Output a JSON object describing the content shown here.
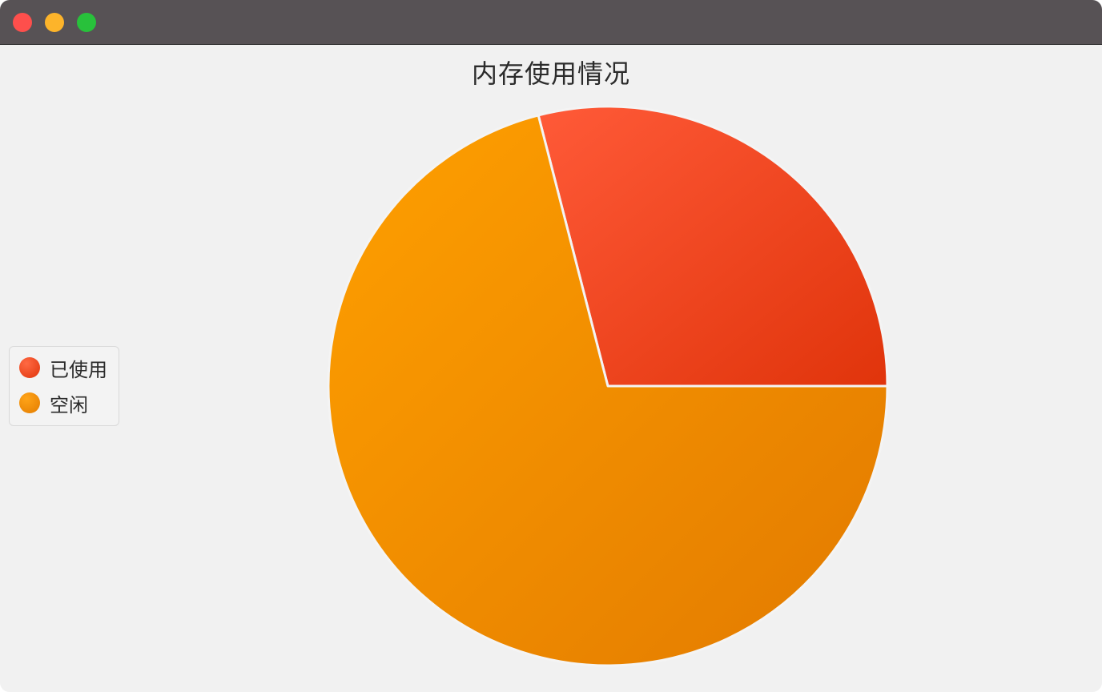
{
  "window": {
    "buttons": [
      "close",
      "minimize",
      "maximize"
    ]
  },
  "colors": {
    "used": "#e8401c",
    "free": "#f39400",
    "used_light": "#ff5a38",
    "used_dark": "#e0340b",
    "free_light": "#ff9f00",
    "free_dark": "#e37c00"
  },
  "chart_data": {
    "type": "pie",
    "title": "内存使用情况",
    "legend_position": "left",
    "slices": [
      {
        "label": "已使用",
        "value": 29
      },
      {
        "label": "空闲",
        "value": 71
      }
    ]
  }
}
